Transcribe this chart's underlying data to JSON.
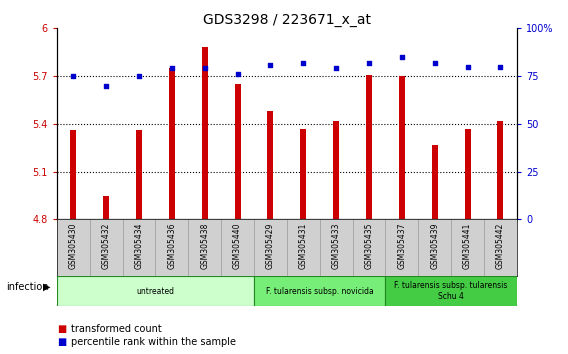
{
  "title": "GDS3298 / 223671_x_at",
  "samples": [
    "GSM305430",
    "GSM305432",
    "GSM305434",
    "GSM305436",
    "GSM305438",
    "GSM305440",
    "GSM305429",
    "GSM305431",
    "GSM305433",
    "GSM305435",
    "GSM305437",
    "GSM305439",
    "GSM305441",
    "GSM305442"
  ],
  "bar_values": [
    5.36,
    4.95,
    5.36,
    5.75,
    5.88,
    5.65,
    5.48,
    5.37,
    5.42,
    5.71,
    5.7,
    5.27,
    5.37,
    5.42
  ],
  "dot_values": [
    75,
    70,
    75,
    79,
    79,
    76,
    81,
    82,
    79,
    82,
    85,
    82,
    80,
    80
  ],
  "ylim_left": [
    4.8,
    6.0
  ],
  "ylim_right": [
    0,
    100
  ],
  "yticks_left": [
    4.8,
    5.1,
    5.4,
    5.7,
    6.0
  ],
  "yticks_right": [
    0,
    25,
    50,
    75,
    100
  ],
  "ytick_labels_left": [
    "4.8",
    "5.1",
    "5.4",
    "5.7",
    "6"
  ],
  "ytick_labels_right": [
    "0",
    "25",
    "50",
    "75",
    "100%"
  ],
  "hlines": [
    5.1,
    5.4,
    5.7
  ],
  "bar_color": "#cc0000",
  "dot_color": "#0000cc",
  "bar_bottom": 4.8,
  "groups": [
    {
      "label": "untreated",
      "start": 0,
      "end": 5,
      "color": "#ccffcc"
    },
    {
      "label": "F. tularensis subsp. novicida",
      "start": 6,
      "end": 9,
      "color": "#77ee77"
    },
    {
      "label": "F. tularensis subsp. tularensis\nSchu 4",
      "start": 10,
      "end": 13,
      "color": "#44cc44"
    }
  ],
  "infection_label": "infection",
  "legend_bar_label": "transformed count",
  "legend_dot_label": "percentile rank within the sample",
  "background_color": "#ffffff",
  "plot_bg_color": "#ffffff",
  "title_fontsize": 10,
  "tick_fontsize": 7,
  "label_fontsize": 7
}
